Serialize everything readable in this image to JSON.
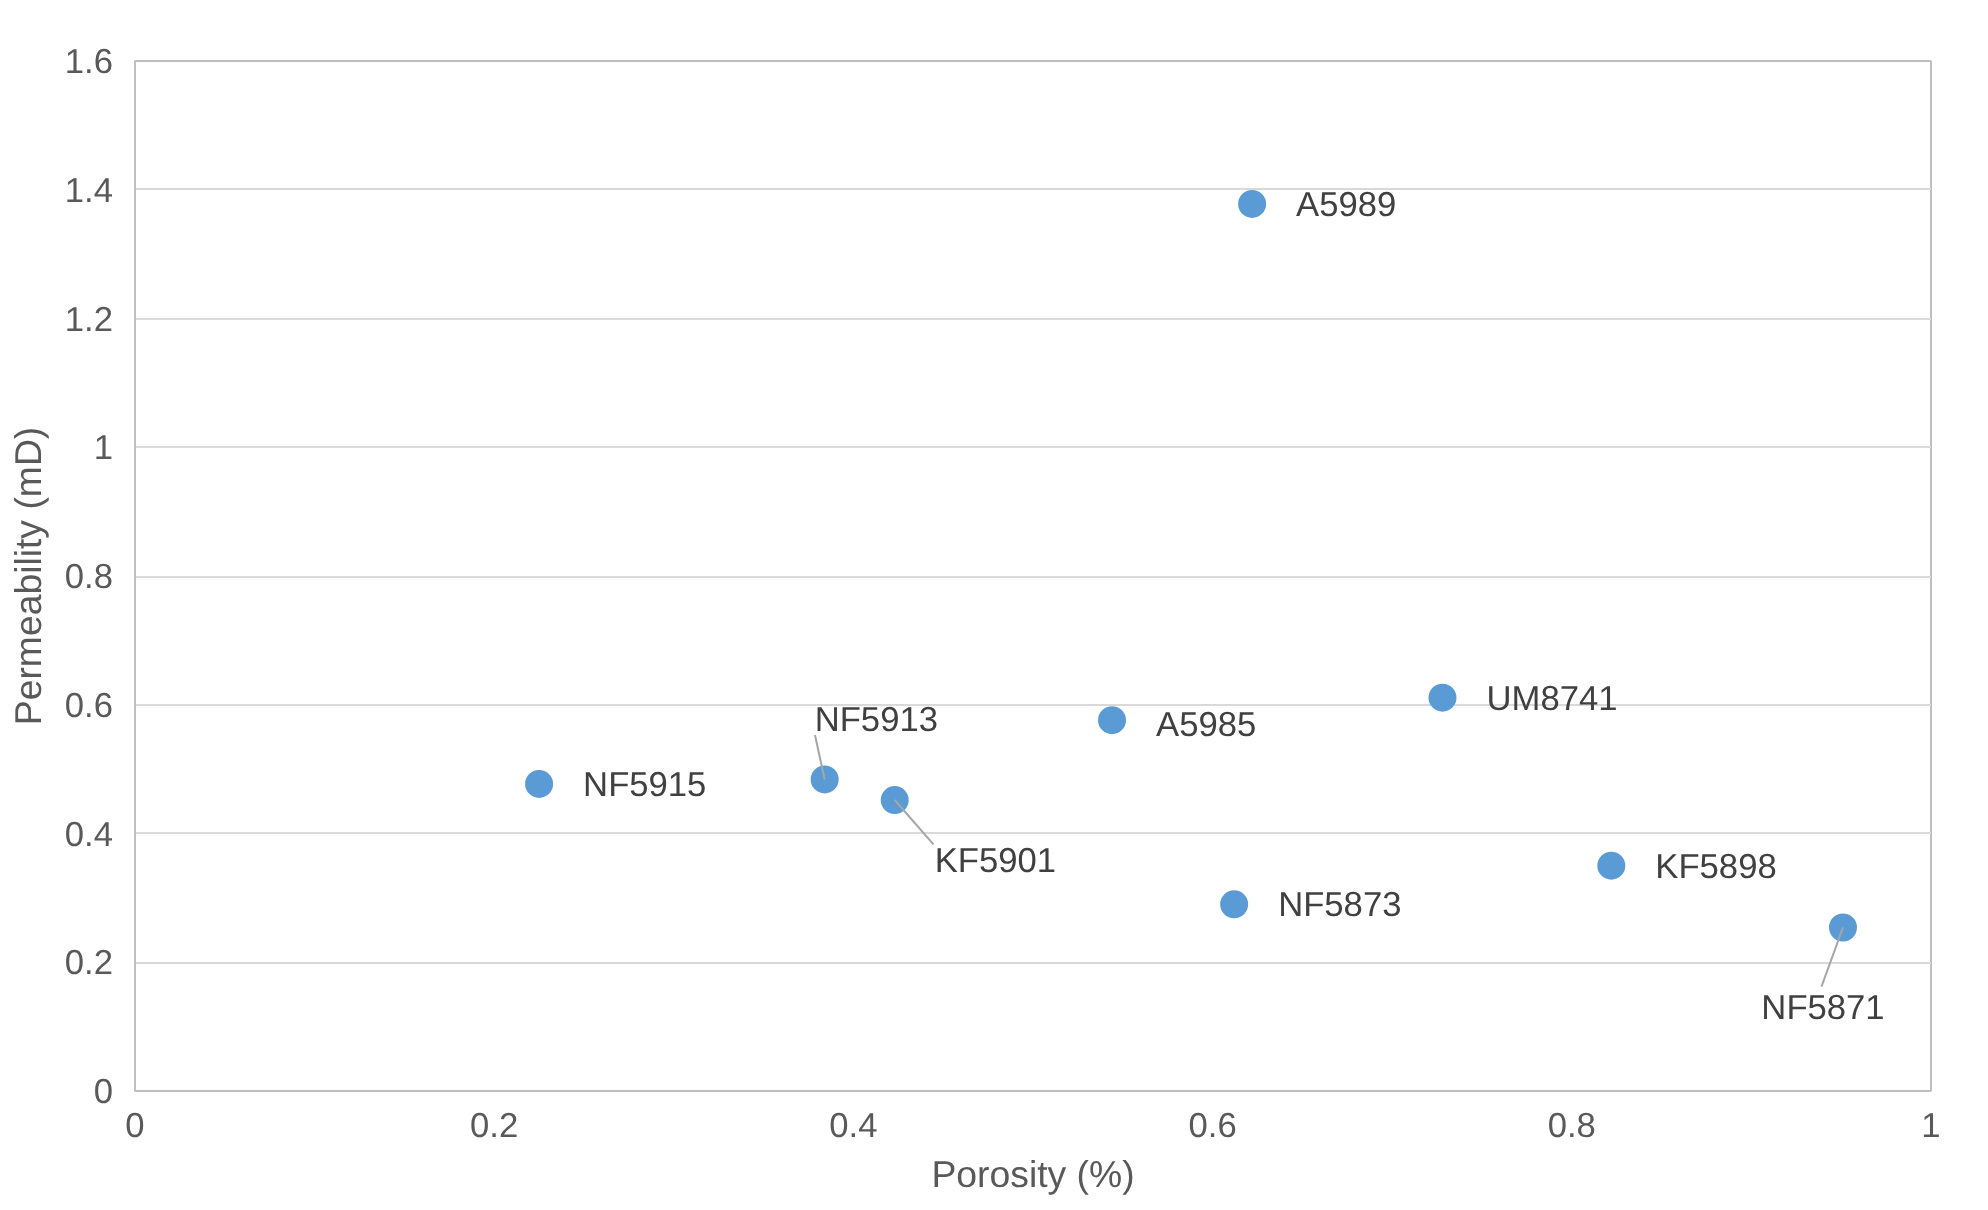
{
  "chart_data": {
    "type": "scatter",
    "xlabel": "Porosity (%)",
    "ylabel": "Permeability (mD)",
    "x": [
      0.225,
      0.384,
      0.423,
      0.544,
      0.622,
      0.612,
      0.728,
      0.822,
      0.951
    ],
    "series": [
      {
        "color": "#5b9bd5",
        "values": [
          0.477,
          0.484,
          0.452,
          0.576,
          1.378,
          0.29,
          0.611,
          0.35,
          0.254
        ]
      }
    ],
    "annotations": [
      {
        "text": "NF5915",
        "x": 0.225,
        "y": 0.477
      },
      {
        "text": "NF5913",
        "x": 0.384,
        "y": 0.484
      },
      {
        "text": "KF5901",
        "x": 0.423,
        "y": 0.452
      },
      {
        "text": "A5985",
        "x": 0.544,
        "y": 0.576
      },
      {
        "text": "A5989",
        "x": 0.622,
        "y": 1.378
      },
      {
        "text": "NF5873",
        "x": 0.612,
        "y": 0.29
      },
      {
        "text": "UM8741",
        "x": 0.728,
        "y": 0.611
      },
      {
        "text": "KF5898",
        "x": 0.822,
        "y": 0.35
      },
      {
        "text": "NF5871",
        "x": 0.951,
        "y": 0.254
      }
    ],
    "xlim": [
      0,
      1
    ],
    "xticks": [
      0,
      0.2,
      0.4,
      0.6,
      0.8,
      1
    ],
    "ylim": [
      0,
      1.6
    ],
    "yticks": [
      0,
      0.2,
      0.4,
      0.6,
      0.8,
      1,
      1.2,
      1.4,
      1.6
    ],
    "grid": "y",
    "marker": "circle"
  }
}
